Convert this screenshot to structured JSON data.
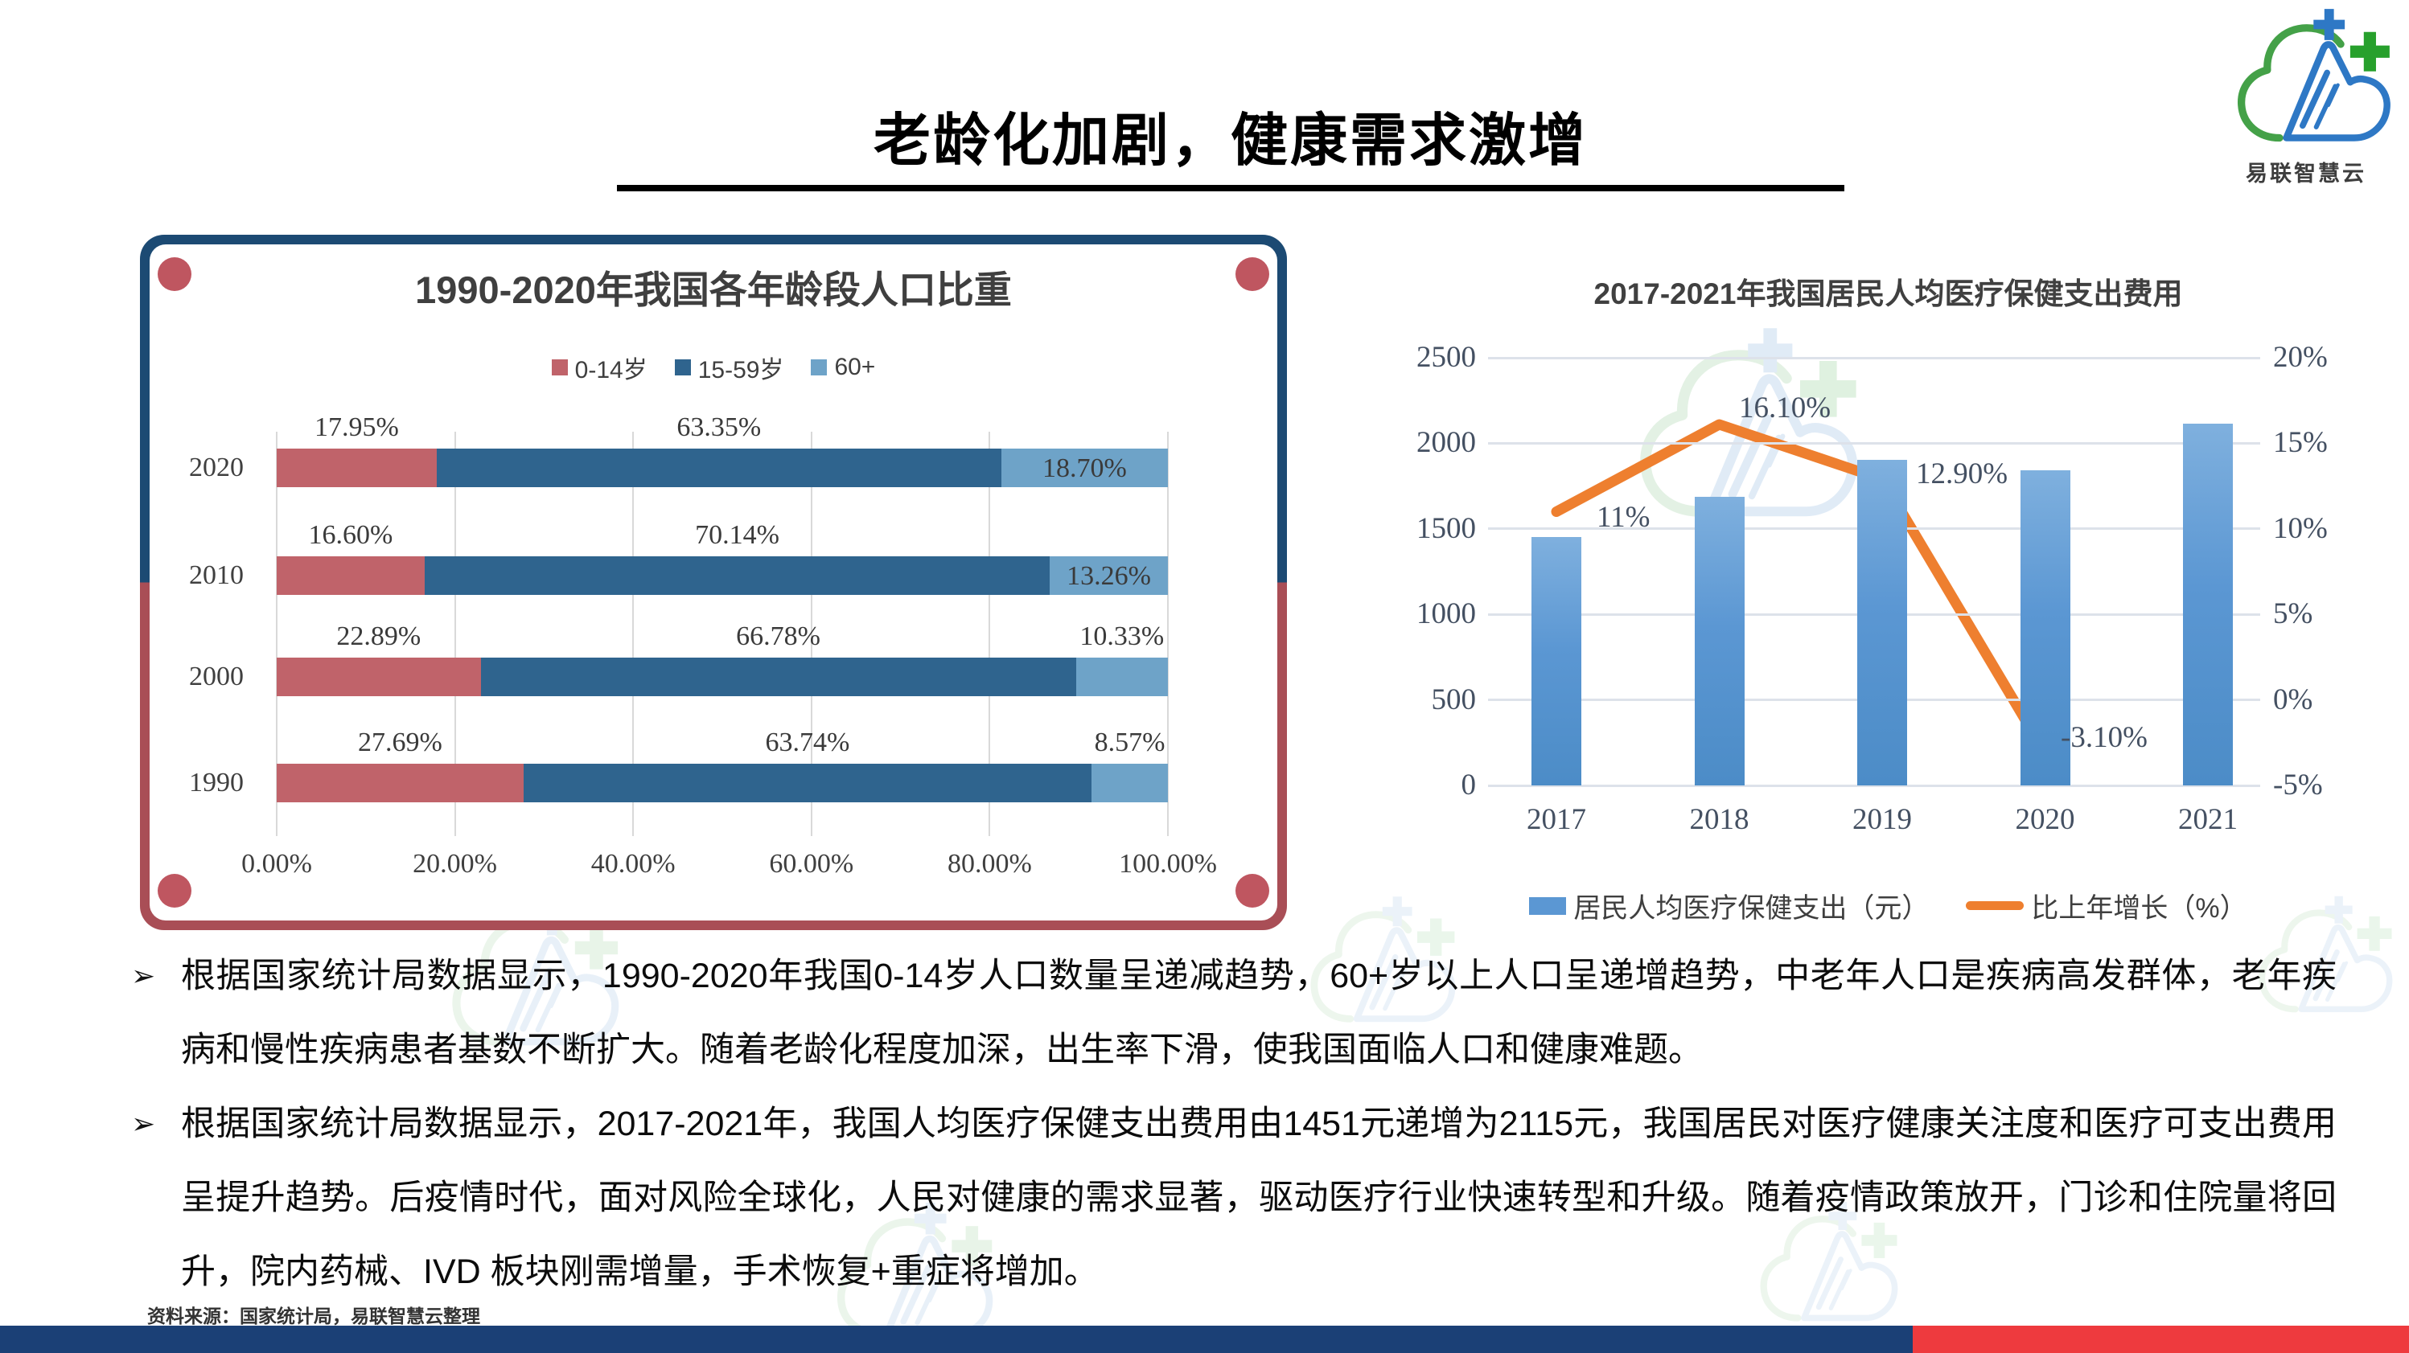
{
  "slide_title": "老龄化加剧，健康需求激增",
  "logo": {
    "name": "易联智慧云"
  },
  "bullets": {
    "marker": "➢",
    "items": [
      "根据国家统计局数据显示，1990-2020年我国0-14岁人口数量呈递减趋势，60+岁以上人口呈递增趋势，中老年人口是疾病高发群体，老年疾病和慢性疾病患者基数不断扩大。随着老龄化程度加深，出生率下滑，使我国面临人口和健康难题。",
      "根据国家统计局数据显示，2017-2021年，我国人均医疗保健支出费用由1451元递增为2115元，我国居民对医疗健康关注度和医疗可支出费用呈提升趋势。后疫情时代，面对风险全球化，人民对健康的需求显著，驱动医疗行业快速转型和升级。随着疫情政策放开，门诊和住院量将回升，院内药械、IVD 板块刚需增量，手术恢复+重症将增加。"
    ]
  },
  "source_note": "资料来源：国家统计局，易联智慧云整理",
  "chart_data": [
    {
      "type": "bar",
      "subtype": "horizontal-stacked",
      "title": "1990-2020年我国各年龄段人口比重",
      "categories": [
        "2020",
        "2010",
        "2000",
        "1990"
      ],
      "series": [
        {
          "name": "0-14岁",
          "color": "#c0636a",
          "values": [
            17.95,
            16.6,
            22.89,
            27.69
          ]
        },
        {
          "name": "15-59岁",
          "color": "#2f648e",
          "values": [
            63.35,
            70.14,
            66.78,
            63.74
          ]
        },
        {
          "name": "60+",
          "color": "#6ea3c8",
          "values": [
            18.7,
            13.26,
            10.33,
            8.57
          ]
        }
      ],
      "value_labels": [
        [
          "17.95%",
          "63.35%",
          "18.70%"
        ],
        [
          "16.60%",
          "70.14%",
          "13.26%"
        ],
        [
          "22.89%",
          "66.78%",
          "10.33%"
        ],
        [
          "27.69%",
          "63.74%",
          "8.57%"
        ]
      ],
      "x_ticks": [
        "0.00%",
        "20.00%",
        "40.00%",
        "60.00%",
        "80.00%",
        "100.00%"
      ],
      "xlim": [
        0,
        100
      ],
      "legend_position": "top",
      "grid": "vertical"
    },
    {
      "type": "combo",
      "title": "2017-2021年我国居民人均医疗保健支出费用",
      "categories": [
        "2017",
        "2018",
        "2019",
        "2020",
        "2021"
      ],
      "bar_series": {
        "name": "居民人均医疗保健支出（元）",
        "color": "#5b97d3",
        "values": [
          1451,
          1685,
          1902,
          1843,
          2115
        ]
      },
      "line_series": {
        "name": "比上年增长（%）",
        "color": "#ee7f2f",
        "values": [
          11,
          16.1,
          12.9,
          -3.1,
          null
        ],
        "labels": [
          "11%",
          "16.10%",
          "12.90%",
          "-3.10%",
          ""
        ]
      },
      "left_axis": {
        "ticks": [
          "0",
          "500",
          "1000",
          "1500",
          "2000",
          "2500"
        ],
        "min": 0,
        "max": 2500
      },
      "right_axis": {
        "ticks": [
          "-5%",
          "0%",
          "5%",
          "10%",
          "15%",
          "20%"
        ],
        "min": -5,
        "max": 20
      },
      "legend_position": "bottom",
      "grid": "horizontal"
    }
  ],
  "colors": {
    "age_0_14": "#c0636a",
    "age_15_59": "#2f648e",
    "age_60_plus": "#6ea3c8",
    "bar_blue": "#5b97d3",
    "line_orange": "#ee7f2f",
    "panel_border_top": "#1c4a73",
    "panel_border_bottom": "#a94e56",
    "corner_dot": "#bf5660",
    "footer_blue": "#1b4076",
    "footer_red": "#ee3a3e"
  }
}
